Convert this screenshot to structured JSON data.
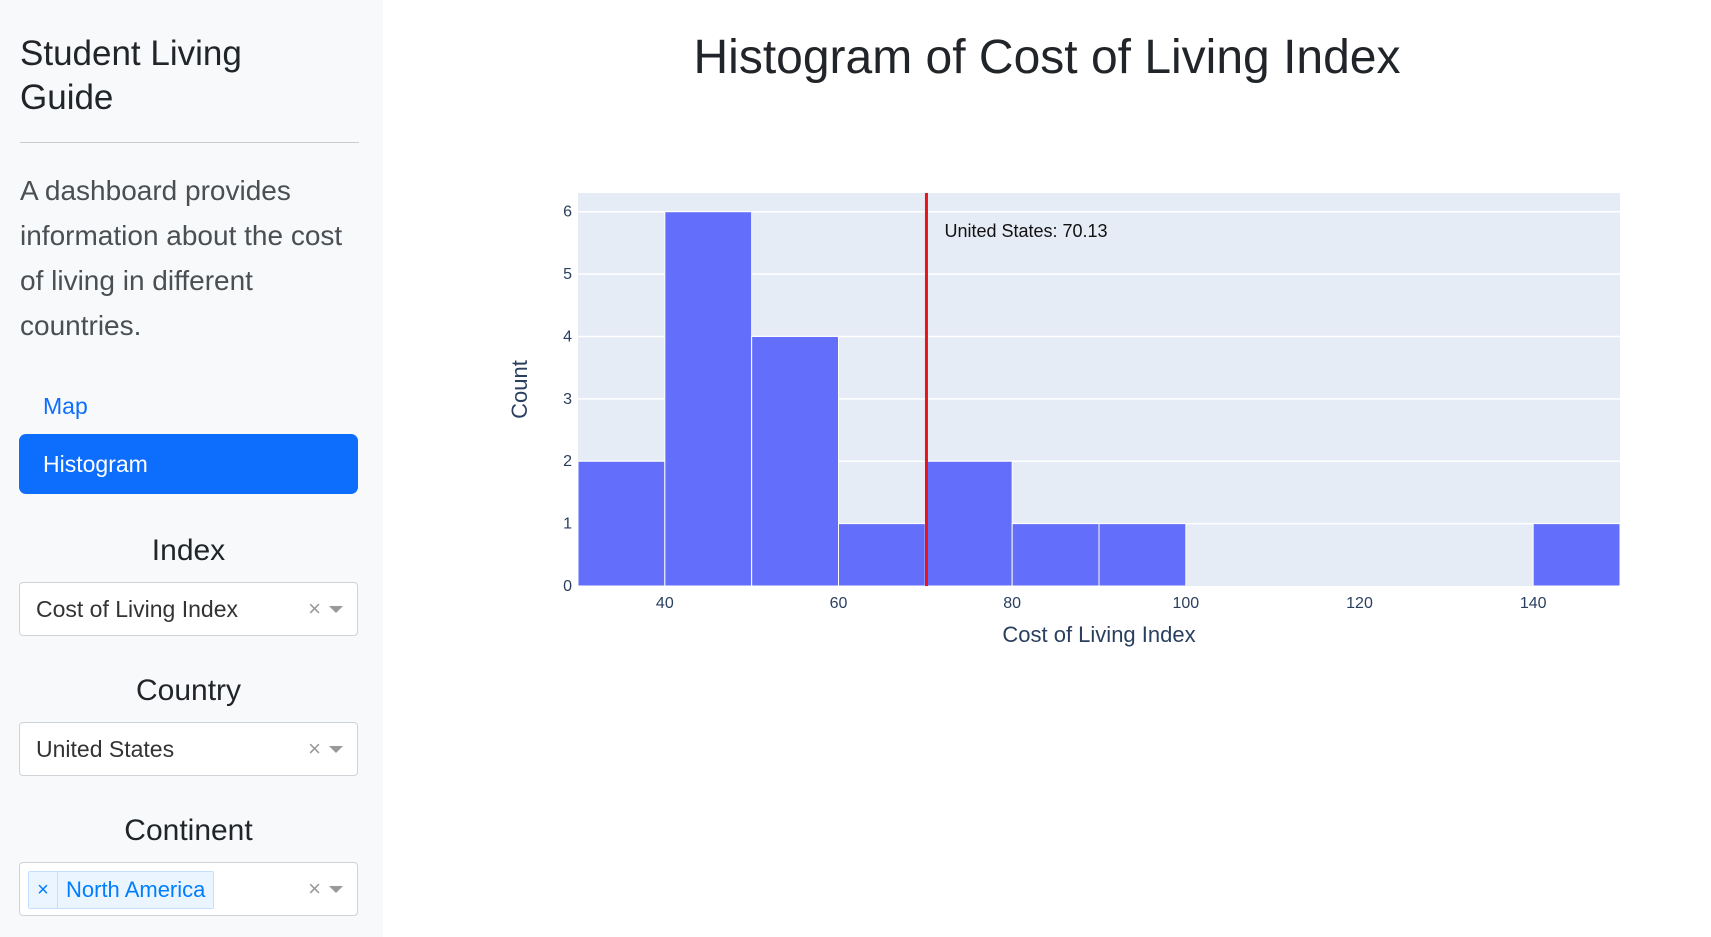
{
  "sidebar": {
    "title": "Student Living Guide",
    "description": "A dashboard provides information about the cost of living in different countries.",
    "nav": [
      {
        "label": "Map",
        "active": false
      },
      {
        "label": "Histogram",
        "active": true
      }
    ]
  },
  "controls": {
    "index": {
      "label": "Index",
      "value": "Cost of Living Index",
      "clear_icon": "×"
    },
    "country": {
      "label": "Country",
      "value": "United States",
      "clear_icon": "×"
    },
    "continent": {
      "label": "Continent",
      "tag": "North America",
      "tag_remove_icon": "×",
      "clear_icon": "×"
    }
  },
  "main": {
    "title": "Histogram of Cost of Living Index"
  },
  "chart_data": {
    "type": "bar",
    "title": "Histogram of Cost of Living Index",
    "xlabel": "Cost of Living Index",
    "ylabel": "Count",
    "bins": [
      {
        "start": 30,
        "end": 40,
        "count": 2
      },
      {
        "start": 40,
        "end": 50,
        "count": 6
      },
      {
        "start": 50,
        "end": 60,
        "count": 4
      },
      {
        "start": 60,
        "end": 70,
        "count": 1
      },
      {
        "start": 70,
        "end": 80,
        "count": 2
      },
      {
        "start": 80,
        "end": 90,
        "count": 1
      },
      {
        "start": 90,
        "end": 100,
        "count": 1
      },
      {
        "start": 140,
        "end": 150,
        "count": 1
      }
    ],
    "xlim": [
      30,
      150
    ],
    "ylim": [
      0,
      6.3
    ],
    "x_ticks": [
      40,
      60,
      80,
      100,
      120,
      140
    ],
    "y_ticks": [
      0,
      1,
      2,
      3,
      4,
      5,
      6
    ],
    "reference_line": {
      "x": 70.13,
      "label": "United States: 70.13",
      "color": "#e8141b"
    },
    "bar_color": "#636efa",
    "plot_bg": "#e5ecf6",
    "grid": true
  }
}
